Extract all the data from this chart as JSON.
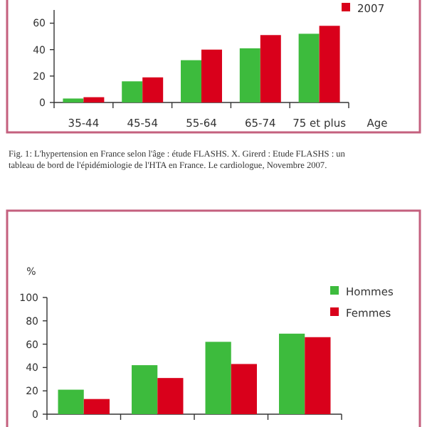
{
  "chart_data": [
    {
      "type": "bar",
      "categories": [
        "35-44",
        "45-54",
        "55-64",
        "65-74",
        "75 et plus"
      ],
      "xlabel": "Age",
      "series": [
        {
          "color": "#3dbb3d",
          "values": [
            3,
            16,
            32,
            41,
            52
          ]
        },
        {
          "name": "2007",
          "color": "#d9001b",
          "values": [
            4,
            19,
            40,
            51,
            58
          ]
        }
      ],
      "ylim": [
        0,
        70
      ],
      "yticks": [
        0,
        20,
        40,
        60
      ],
      "legend": "top right",
      "annotations": [
        "Fig. 1: L'hypertension en France selon l'âge : étude FLASHS. X. Girerd : Etude FLASHS : un tableau de bord de l'épidémiologie de l'HTA en France. Le cardiologue, Novembre 2007."
      ]
    },
    {
      "type": "bar",
      "categories": [
        null,
        null,
        null,
        null
      ],
      "ylabel": "%",
      "series": [
        {
          "name": "Hommes",
          "color": "#3dbb3d",
          "values": [
            21,
            42,
            62,
            69
          ]
        },
        {
          "name": "Femmes",
          "color": "#d9001b",
          "values": [
            13,
            31,
            43,
            66
          ]
        }
      ],
      "ylim": [
        0,
        100
      ],
      "yticks": [
        0,
        20,
        40,
        60,
        80,
        100
      ],
      "legend": "top right"
    }
  ]
}
